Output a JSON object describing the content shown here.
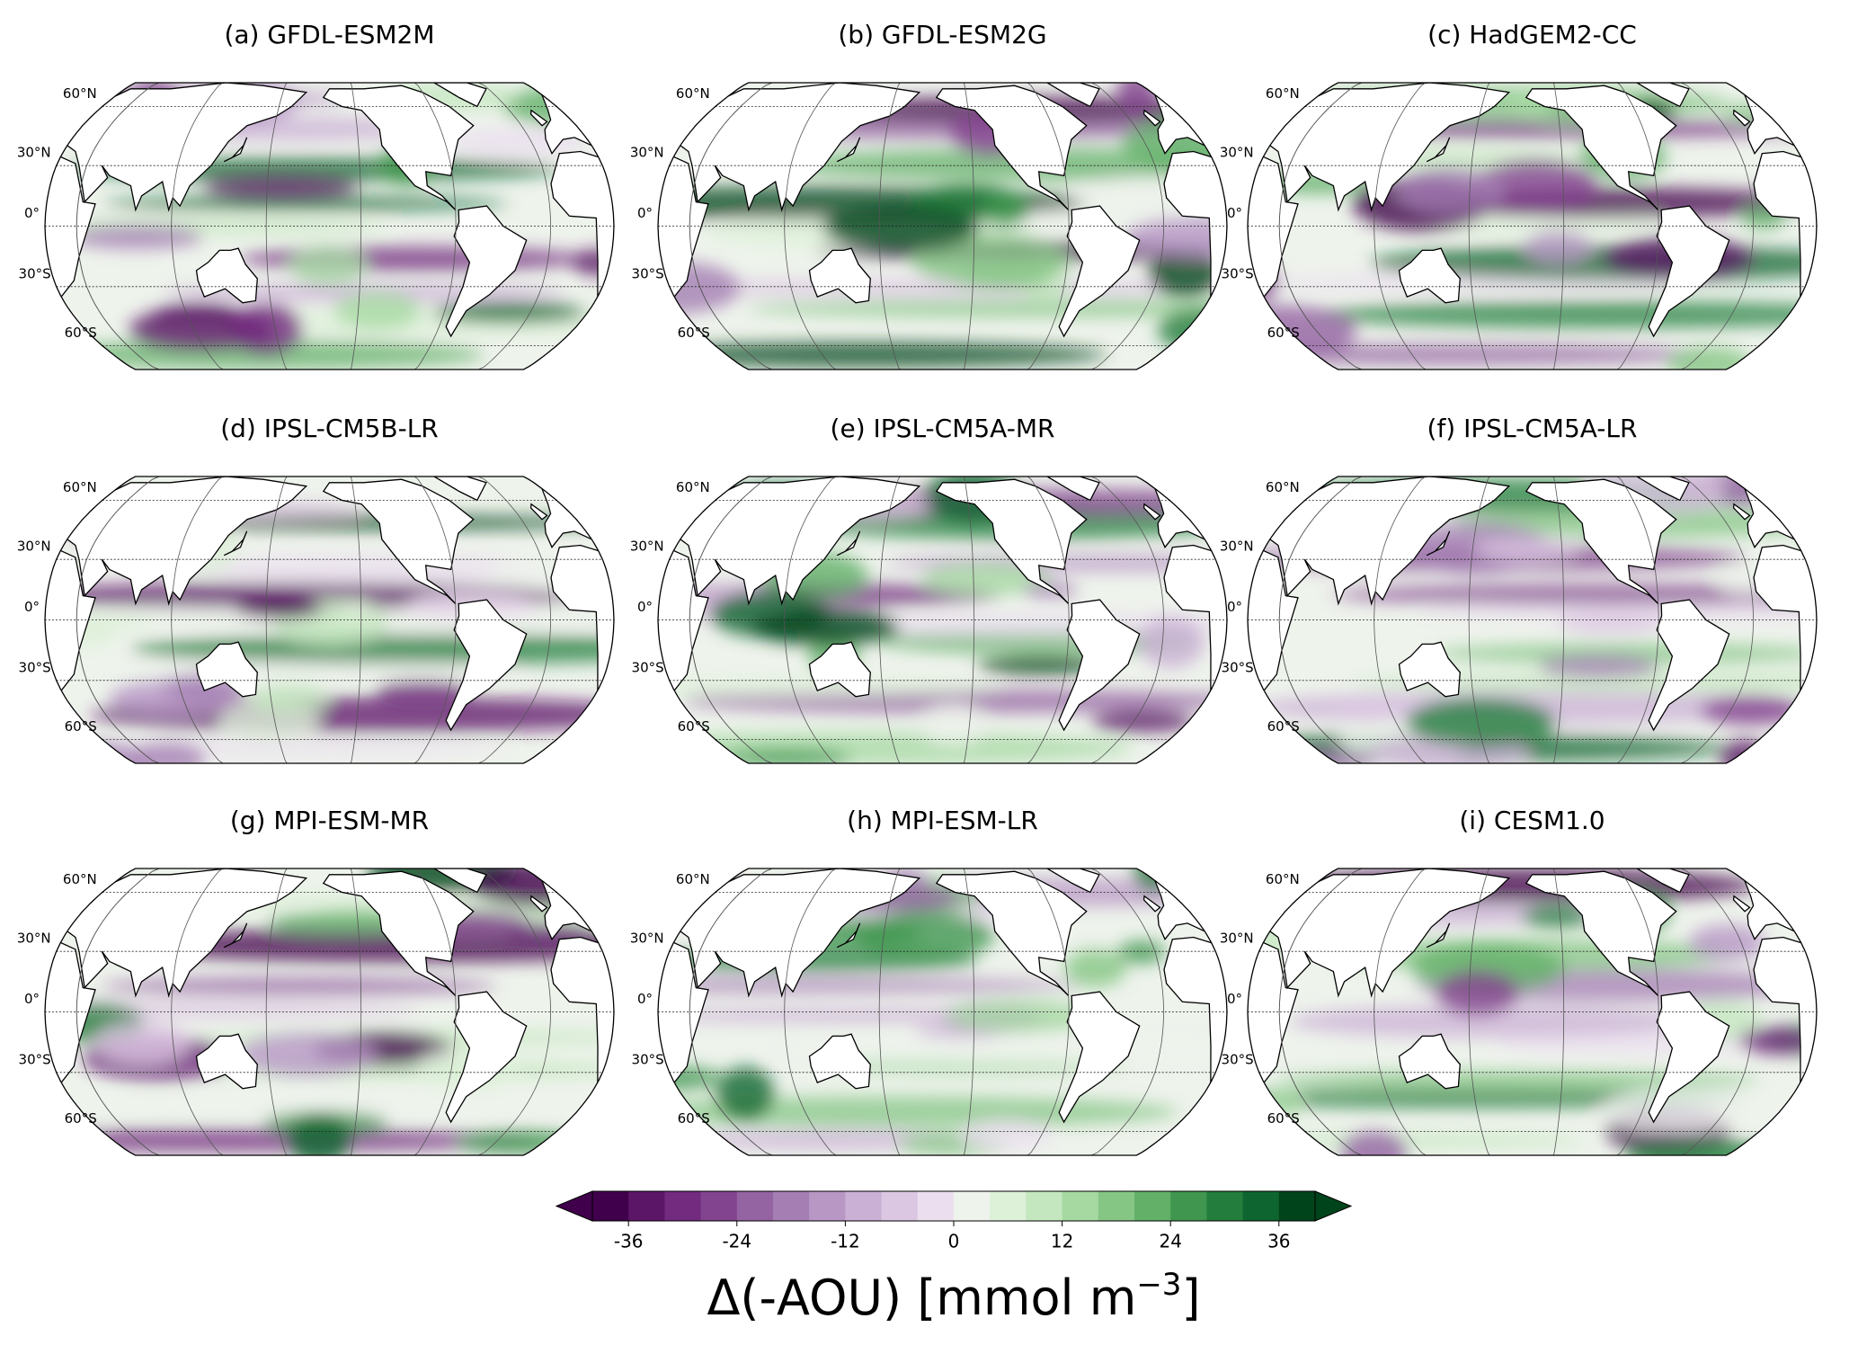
{
  "panels": [
    {
      "title": "(a) GFDL-ESM2M"
    },
    {
      "title": "(b) GFDL-ESM2G"
    },
    {
      "title": "(c) HadGEM2-CC"
    },
    {
      "title": "(d) IPSL-CM5B-LR"
    },
    {
      "title": "(e) IPSL-CM5A-MR"
    },
    {
      "title": "(f) IPSL-CM5A-LR"
    },
    {
      "title": "(g) MPI-ESM-MR"
    },
    {
      "title": "(h) MPI-ESM-LR"
    },
    {
      "title": "(i) CESM1.0"
    }
  ],
  "lat_labels": [
    {
      "value": 60,
      "label": "60°N"
    },
    {
      "value": 30,
      "label": "30°N"
    },
    {
      "value": 0,
      "label": "0°"
    },
    {
      "value": -30,
      "label": "30°S"
    },
    {
      "value": -60,
      "label": "60°S"
    }
  ],
  "colorbar": {
    "boundaries": [
      -40,
      -36,
      -32,
      -28,
      -24,
      -20,
      -16,
      -12,
      -8,
      -4,
      0,
      4,
      8,
      12,
      16,
      20,
      24,
      28,
      32,
      36,
      40
    ],
    "colors": [
      "#40004b",
      "#5b1667",
      "#722b7e",
      "#83448f",
      "#9463a2",
      "#a57fb4",
      "#b897c5",
      "#cbb0d5",
      "#dcc7e2",
      "#ebdfef",
      "#eef3ec",
      "#ddf0d8",
      "#c4e7bf",
      "#a6d9a2",
      "#86c685",
      "#63b069",
      "#40964f",
      "#237d3c",
      "#0f6530",
      "#00441b"
    ],
    "ticks": [
      -36,
      -24,
      -12,
      0,
      12,
      24,
      36
    ],
    "label": "Δ(-AOU) [mmol m",
    "label_exponent": "−3",
    "label_end": "]"
  }
}
